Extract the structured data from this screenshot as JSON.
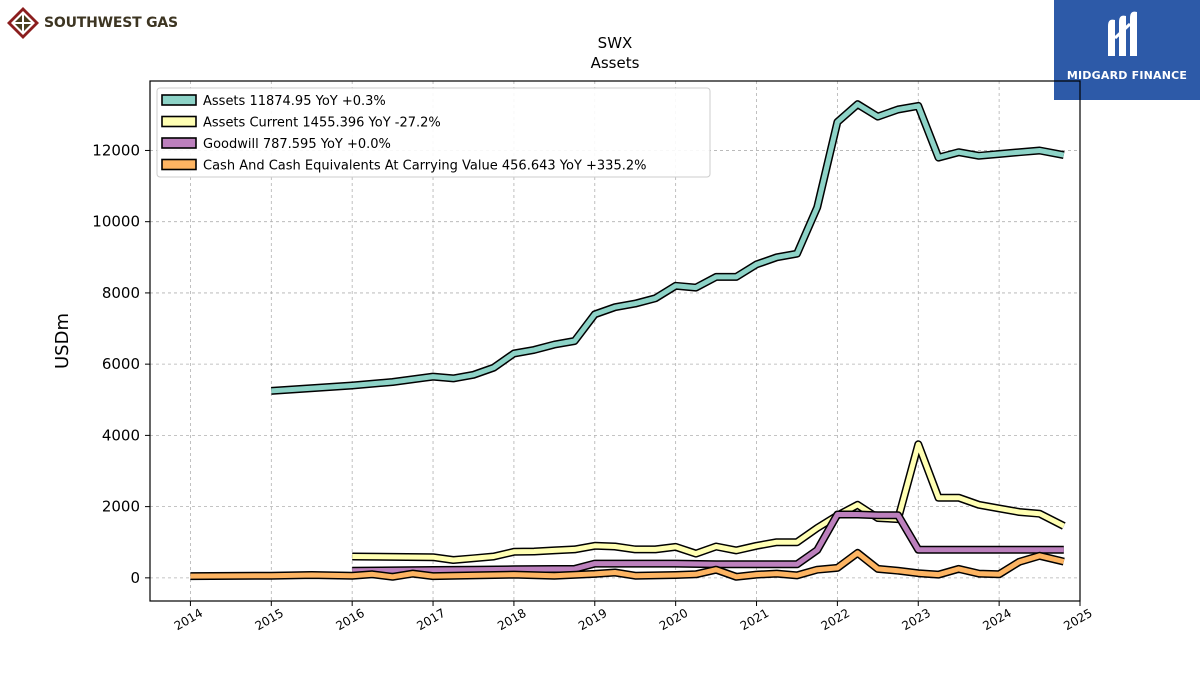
{
  "brand_left": {
    "name": "SOUTHWEST GAS",
    "icon": "diamond-grid-logo-icon"
  },
  "brand_right": {
    "name": "MIDGARD FINANCE",
    "icon": "m-monogram-logo-icon",
    "bg": "#2d5aa8"
  },
  "chart_data": {
    "type": "line",
    "title": "SWX",
    "subtitle": "Assets",
    "ylabel": "USDm",
    "xlabel": "",
    "xlim": [
      2013.5,
      2025.0
    ],
    "ylim": [
      -650,
      13950
    ],
    "xticks": [
      2014,
      2015,
      2016,
      2017,
      2018,
      2019,
      2020,
      2021,
      2022,
      2023,
      2024,
      2025
    ],
    "yticks": [
      0,
      2000,
      4000,
      6000,
      8000,
      10000,
      12000
    ],
    "grid": true,
    "legend_position": "top-left",
    "series": [
      {
        "name": "Assets",
        "legend": "Assets  11874.95 YoY +0.3%",
        "color": "#8dd3c7",
        "points": [
          [
            2015.0,
            5250
          ],
          [
            2016.0,
            5400
          ],
          [
            2016.5,
            5500
          ],
          [
            2017.0,
            5650
          ],
          [
            2017.25,
            5600
          ],
          [
            2017.5,
            5700
          ],
          [
            2017.75,
            5900
          ],
          [
            2018.0,
            6300
          ],
          [
            2018.25,
            6400
          ],
          [
            2018.5,
            6550
          ],
          [
            2018.75,
            6650
          ],
          [
            2019.0,
            7400
          ],
          [
            2019.25,
            7600
          ],
          [
            2019.5,
            7700
          ],
          [
            2019.75,
            7850
          ],
          [
            2020.0,
            8200
          ],
          [
            2020.25,
            8150
          ],
          [
            2020.5,
            8450
          ],
          [
            2020.75,
            8450
          ],
          [
            2021.0,
            8800
          ],
          [
            2021.25,
            9000
          ],
          [
            2021.5,
            9100
          ],
          [
            2021.75,
            10400
          ],
          [
            2022.0,
            12800
          ],
          [
            2022.25,
            13300
          ],
          [
            2022.5,
            12950
          ],
          [
            2022.75,
            13150
          ],
          [
            2023.0,
            13250
          ],
          [
            2023.25,
            11800
          ],
          [
            2023.5,
            11950
          ],
          [
            2023.75,
            11850
          ],
          [
            2024.0,
            11900
          ],
          [
            2024.25,
            11950
          ],
          [
            2024.5,
            12000
          ],
          [
            2024.8,
            11870
          ]
        ]
      },
      {
        "name": "Assets Current",
        "legend": "Assets Current  1455.396 YoY -27.2%",
        "color": "#ffffb3",
        "points": [
          [
            2016.0,
            600
          ],
          [
            2017.0,
            580
          ],
          [
            2017.25,
            500
          ],
          [
            2017.5,
            550
          ],
          [
            2017.75,
            600
          ],
          [
            2018.0,
            730
          ],
          [
            2018.25,
            740
          ],
          [
            2018.5,
            770
          ],
          [
            2018.75,
            800
          ],
          [
            2019.0,
            900
          ],
          [
            2019.25,
            880
          ],
          [
            2019.5,
            800
          ],
          [
            2019.75,
            800
          ],
          [
            2020.0,
            870
          ],
          [
            2020.25,
            680
          ],
          [
            2020.5,
            880
          ],
          [
            2020.75,
            770
          ],
          [
            2021.0,
            900
          ],
          [
            2021.25,
            1000
          ],
          [
            2021.5,
            1000
          ],
          [
            2021.75,
            1400
          ],
          [
            2022.0,
            1750
          ],
          [
            2022.25,
            2050
          ],
          [
            2022.5,
            1680
          ],
          [
            2022.75,
            1650
          ],
          [
            2023.0,
            3750
          ],
          [
            2023.25,
            2250
          ],
          [
            2023.5,
            2250
          ],
          [
            2023.75,
            2050
          ],
          [
            2024.0,
            1950
          ],
          [
            2024.25,
            1850
          ],
          [
            2024.5,
            1800
          ],
          [
            2024.8,
            1455
          ]
        ]
      },
      {
        "name": "Goodwill",
        "legend": "Goodwill  787.595 YoY +0.0%",
        "color": "#bc80bd",
        "points": [
          [
            2016.0,
            200
          ],
          [
            2017.0,
            220
          ],
          [
            2017.5,
            230
          ],
          [
            2018.0,
            240
          ],
          [
            2018.75,
            250
          ],
          [
            2019.0,
            400
          ],
          [
            2019.5,
            400
          ],
          [
            2020.0,
            400
          ],
          [
            2020.5,
            380
          ],
          [
            2021.0,
            380
          ],
          [
            2021.5,
            380
          ],
          [
            2021.75,
            780
          ],
          [
            2022.0,
            1780
          ],
          [
            2022.25,
            1780
          ],
          [
            2022.5,
            1760
          ],
          [
            2022.75,
            1760
          ],
          [
            2023.0,
            790
          ],
          [
            2023.5,
            790
          ],
          [
            2024.0,
            790
          ],
          [
            2024.5,
            788
          ],
          [
            2024.8,
            788
          ]
        ]
      },
      {
        "name": "Cash And Cash Equivalents At Carrying Value",
        "legend": "Cash And Cash Equivalents At Carrying Value  456.643 YoY +335.2%",
        "color": "#fdb462",
        "points": [
          [
            2014.0,
            50
          ],
          [
            2015.0,
            60
          ],
          [
            2015.5,
            80
          ],
          [
            2016.0,
            60
          ],
          [
            2016.25,
            100
          ],
          [
            2016.5,
            30
          ],
          [
            2016.75,
            120
          ],
          [
            2017.0,
            50
          ],
          [
            2017.5,
            70
          ],
          [
            2018.0,
            90
          ],
          [
            2018.5,
            60
          ],
          [
            2019.0,
            110
          ],
          [
            2019.25,
            150
          ],
          [
            2019.5,
            60
          ],
          [
            2020.0,
            80
          ],
          [
            2020.25,
            100
          ],
          [
            2020.5,
            230
          ],
          [
            2020.75,
            30
          ],
          [
            2021.0,
            90
          ],
          [
            2021.25,
            120
          ],
          [
            2021.5,
            70
          ],
          [
            2021.75,
            230
          ],
          [
            2022.0,
            280
          ],
          [
            2022.25,
            700
          ],
          [
            2022.5,
            250
          ],
          [
            2022.75,
            200
          ],
          [
            2023.0,
            130
          ],
          [
            2023.25,
            90
          ],
          [
            2023.5,
            250
          ],
          [
            2023.75,
            120
          ],
          [
            2024.0,
            100
          ],
          [
            2024.25,
            450
          ],
          [
            2024.5,
            620
          ],
          [
            2024.8,
            457
          ]
        ]
      }
    ]
  }
}
